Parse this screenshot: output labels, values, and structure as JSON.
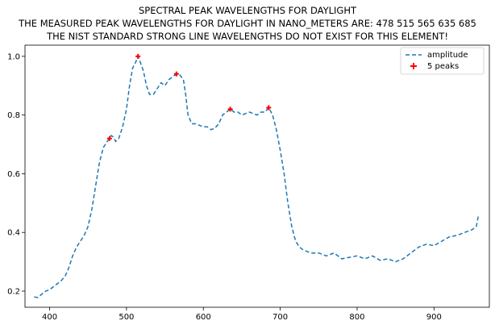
{
  "chart_data": {
    "type": "line",
    "title_lines": [
      "SPECTRAL PEAK WAVELENGTHS FOR DAYLIGHT",
      "THE MEASURED PEAK WAVELENGTHS FOR DAYLIGHT IN NANO_METERS ARE: 478 515 565 635 685",
      "THE NIST STANDARD STRONG LINE WAVELENGTHS DO NOT EXIST FOR THIS ELEMENT!"
    ],
    "xlabel": "",
    "ylabel": "",
    "xlim": [
      368,
      972
    ],
    "ylim": [
      0.145,
      1.038
    ],
    "x_ticks": [
      400,
      500,
      600,
      700,
      800,
      900
    ],
    "y_ticks": [
      0.2,
      0.4,
      0.6,
      0.8,
      1.0
    ],
    "y_tick_labels": [
      "0.2",
      "0.4",
      "0.6",
      "0.8",
      "1.0"
    ],
    "grid": false,
    "legend_position": "top-right",
    "series": [
      {
        "name": "amplitude",
        "style": "dashed",
        "color": "#1f77b4",
        "points": [
          [
            380,
            0.18
          ],
          [
            385,
            0.178
          ],
          [
            390,
            0.19
          ],
          [
            395,
            0.2
          ],
          [
            400,
            0.205
          ],
          [
            405,
            0.215
          ],
          [
            410,
            0.225
          ],
          [
            415,
            0.235
          ],
          [
            420,
            0.25
          ],
          [
            425,
            0.28
          ],
          [
            430,
            0.32
          ],
          [
            435,
            0.35
          ],
          [
            440,
            0.37
          ],
          [
            445,
            0.39
          ],
          [
            450,
            0.42
          ],
          [
            455,
            0.48
          ],
          [
            460,
            0.56
          ],
          [
            465,
            0.64
          ],
          [
            470,
            0.69
          ],
          [
            475,
            0.71
          ],
          [
            478,
            0.72
          ],
          [
            480,
            0.73
          ],
          [
            483,
            0.725
          ],
          [
            486,
            0.71
          ],
          [
            490,
            0.72
          ],
          [
            495,
            0.76
          ],
          [
            500,
            0.82
          ],
          [
            504,
            0.9
          ],
          [
            508,
            0.96
          ],
          [
            512,
            0.98
          ],
          [
            515,
            1.0
          ],
          [
            518,
            0.98
          ],
          [
            522,
            0.95
          ],
          [
            526,
            0.9
          ],
          [
            530,
            0.87
          ],
          [
            535,
            0.87
          ],
          [
            540,
            0.89
          ],
          [
            545,
            0.91
          ],
          [
            550,
            0.9
          ],
          [
            555,
            0.92
          ],
          [
            560,
            0.93
          ],
          [
            565,
            0.94
          ],
          [
            570,
            0.935
          ],
          [
            574,
            0.92
          ],
          [
            577,
            0.87
          ],
          [
            580,
            0.8
          ],
          [
            585,
            0.77
          ],
          [
            590,
            0.77
          ],
          [
            595,
            0.765
          ],
          [
            600,
            0.76
          ],
          [
            605,
            0.76
          ],
          [
            610,
            0.75
          ],
          [
            615,
            0.755
          ],
          [
            620,
            0.77
          ],
          [
            625,
            0.8
          ],
          [
            630,
            0.81
          ],
          [
            635,
            0.82
          ],
          [
            640,
            0.81
          ],
          [
            645,
            0.81
          ],
          [
            650,
            0.8
          ],
          [
            655,
            0.805
          ],
          [
            660,
            0.81
          ],
          [
            665,
            0.805
          ],
          [
            670,
            0.8
          ],
          [
            675,
            0.81
          ],
          [
            680,
            0.81
          ],
          [
            685,
            0.825
          ],
          [
            690,
            0.8
          ],
          [
            695,
            0.75
          ],
          [
            700,
            0.68
          ],
          [
            705,
            0.6
          ],
          [
            710,
            0.5
          ],
          [
            715,
            0.42
          ],
          [
            720,
            0.37
          ],
          [
            725,
            0.35
          ],
          [
            730,
            0.34
          ],
          [
            740,
            0.33
          ],
          [
            750,
            0.33
          ],
          [
            760,
            0.32
          ],
          [
            770,
            0.33
          ],
          [
            780,
            0.31
          ],
          [
            790,
            0.315
          ],
          [
            800,
            0.32
          ],
          [
            810,
            0.31
          ],
          [
            820,
            0.32
          ],
          [
            830,
            0.305
          ],
          [
            840,
            0.31
          ],
          [
            850,
            0.3
          ],
          [
            860,
            0.31
          ],
          [
            870,
            0.33
          ],
          [
            880,
            0.35
          ],
          [
            890,
            0.36
          ],
          [
            900,
            0.355
          ],
          [
            910,
            0.37
          ],
          [
            920,
            0.385
          ],
          [
            930,
            0.39
          ],
          [
            940,
            0.4
          ],
          [
            950,
            0.41
          ],
          [
            955,
            0.42
          ],
          [
            958,
            0.46
          ]
        ]
      },
      {
        "name": "5 peaks",
        "style": "markers",
        "marker": "plus",
        "color": "#ff0000",
        "points": [
          [
            478,
            0.72
          ],
          [
            515,
            1.0
          ],
          [
            565,
            0.94
          ],
          [
            635,
            0.82
          ],
          [
            685,
            0.825
          ]
        ]
      }
    ]
  }
}
